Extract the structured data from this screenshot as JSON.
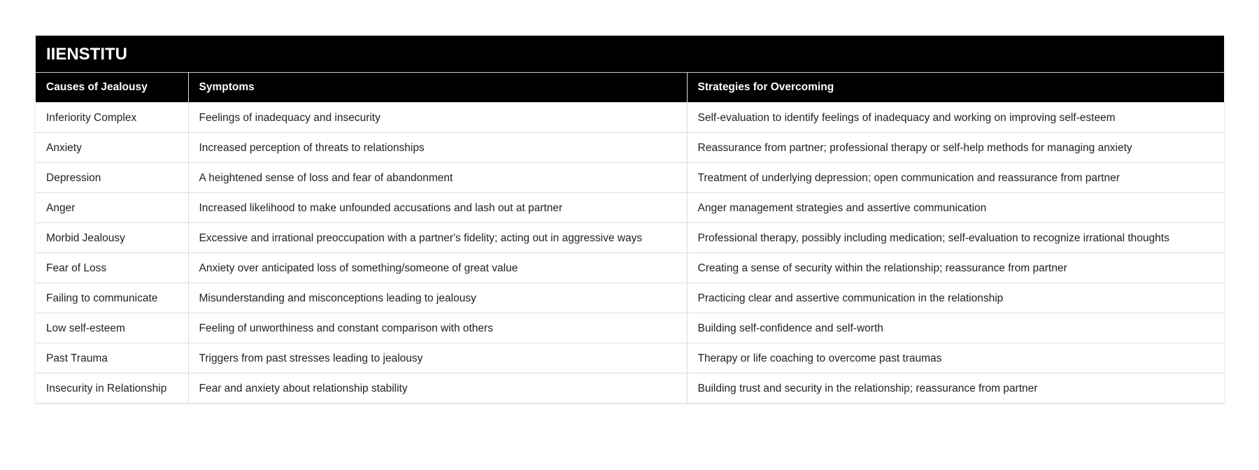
{
  "title": "IIENSTITU",
  "headers": [
    "Causes of Jealousy",
    "Symptoms",
    "Strategies for Overcoming"
  ],
  "rows": [
    [
      "Inferiority Complex",
      "Feelings of inadequacy and insecurity",
      "Self-evaluation to identify feelings of inadequacy and working on improving self-esteem"
    ],
    [
      "Anxiety",
      "Increased perception of threats to relationships",
      "Reassurance from partner; professional therapy or self-help methods for managing anxiety"
    ],
    [
      "Depression",
      "A heightened sense of loss and fear of abandonment",
      "Treatment of underlying depression; open communication and reassurance from partner"
    ],
    [
      "Anger",
      "Increased likelihood to make unfounded accusations and lash out at partner",
      "Anger management strategies and assertive communication"
    ],
    [
      "Morbid Jealousy",
      "Excessive and irrational preoccupation with a partner's fidelity; acting out in aggressive ways",
      "Professional therapy, possibly including medication; self-evaluation to recognize irrational thoughts"
    ],
    [
      "Fear of Loss",
      "Anxiety over anticipated loss of something/someone of great value",
      "Creating a sense of security within the relationship; reassurance from partner"
    ],
    [
      "Failing to communicate",
      "Misunderstanding and misconceptions leading to jealousy",
      "Practicing clear and assertive communication in the relationship"
    ],
    [
      "Low self-esteem",
      "Feeling of unworthiness and constant comparison with others",
      "Building self-confidence and self-worth"
    ],
    [
      "Past Trauma",
      "Triggers from past stresses leading to jealousy",
      "Therapy or life coaching to overcome past traumas"
    ],
    [
      "Insecurity in Relationship",
      "Fear and anxiety about relationship stability",
      "Building trust and security in the relationship; reassurance from partner"
    ]
  ]
}
